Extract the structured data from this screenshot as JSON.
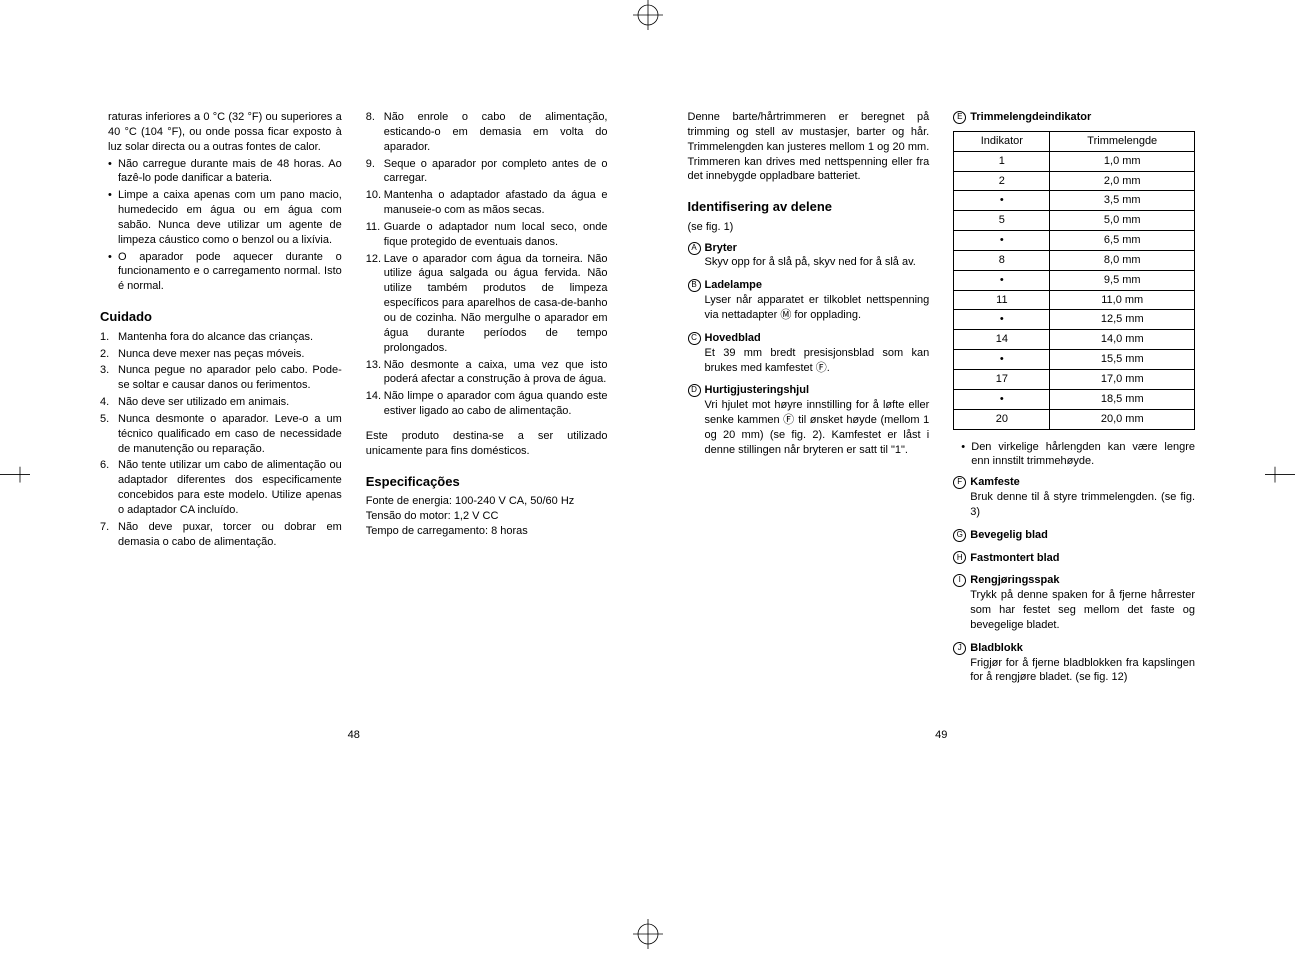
{
  "leftPage": {
    "number": "48",
    "col1": {
      "continuedBullets": [
        "raturas inferiores a 0 °C (32 °F) ou superiores a 40 °C (104 °F), ou onde possa ficar exposto à luz solar directa ou a outras fontes de calor.",
        "Não carregue durante mais de 48 horas. Ao fazê-lo pode danificar a bateria.",
        "Limpe a caixa apenas com um pano macio, humedecido em água ou em água com sabão. Nunca deve utilizar um agente de limpeza cáustico como o benzol ou a lixívia.",
        "O aparador pode aquecer durante o funcionamento e o carregamento normal. Isto é normal."
      ],
      "heading": "Cuidado",
      "numList": [
        "Mantenha fora do alcance das crianças.",
        "Nunca deve mexer nas peças móveis.",
        "Nunca pegue no aparador pelo cabo. Pode-se soltar e causar danos ou ferimentos.",
        "Não deve ser utilizado em animais.",
        "Nunca desmonte o aparador. Leve-o a um técnico qualificado em caso de necessidade de manutenção ou reparação.",
        "Não tente utilizar um cabo de alimentação ou adaptador diferentes dos especificamente concebidos para este modelo. Utilize apenas o adaptador CA incluído.",
        "Não deve puxar, torcer ou dobrar em demasia o cabo de alimentação."
      ]
    },
    "col2": {
      "numListContinued": [
        {
          "n": "8.",
          "t": "Não enrole o cabo de alimentação, esticando-o em demasia em volta do aparador."
        },
        {
          "n": "9.",
          "t": "Seque o aparador por completo antes de o carregar."
        },
        {
          "n": "10.",
          "t": "Mantenha o adaptador afastado da água e manuseie-o com as mãos secas."
        },
        {
          "n": "11.",
          "t": "Guarde o adaptador num local seco, onde fique protegido de eventuais danos."
        },
        {
          "n": "12.",
          "t": "Lave o aparador com água da torneira. Não utilize água salgada ou água fervida. Não utilize também produtos de limpeza específicos para aparelhos de casa-de-banho ou de cozinha. Não mergulhe o aparador em água durante períodos de tempo prolongados."
        },
        {
          "n": "13.",
          "t": "Não desmonte a caixa, uma vez que isto poderá afectar a construção à prova de água."
        },
        {
          "n": "14.",
          "t": "Não limpe o aparador com água quando este estiver ligado ao cabo de alimentação."
        }
      ],
      "purposeText": "Este produto destina-se a ser utilizado unicamente para fins domésticos.",
      "specHeading": "Especificações",
      "specLines": [
        "Fonte de energia: 100-240 V CA, 50/60 Hz",
        "Tensão do motor: 1,2 V CC",
        "Tempo de carregamento: 8 horas"
      ]
    }
  },
  "rightPage": {
    "number": "49",
    "col1": {
      "intro": "Denne barte/hårtrimmeren er beregnet på trimming og stell av mustasjer, barter og hår. Trimmelengden kan justeres mellom 1 og 20 mm. Trimmeren kan drives med nettspenning eller fra det innebygde oppladbare batteriet.",
      "partsHeading": "Identifisering av delene",
      "figRef": "(se fig. 1)",
      "items": [
        {
          "letter": "A",
          "term": "Bryter",
          "desc": "Skyv opp for å slå på, skyv ned for å slå av."
        },
        {
          "letter": "B",
          "term": "Ladelampe",
          "desc": "Lyser når apparatet er tilkoblet nettspenning via nettadapter Ⓜ for opplading."
        },
        {
          "letter": "C",
          "term": "Hovedblad",
          "desc": "Et 39 mm bredt presisjonsblad som kan brukes med kamfestet Ⓕ."
        },
        {
          "letter": "D",
          "term": "Hurtigjusteringshjul",
          "desc": "Vri hjulet mot høyre innstilling for å løfte eller senke kammen Ⓕ til ønsket høyde (mellom 1 og 20 mm) (se fig. 2). Kamfestet er låst i denne stillingen når bryteren er satt til \"1\"."
        }
      ]
    },
    "col2": {
      "tableLabel": {
        "letter": "E",
        "term": "Trimmelengdeindikator"
      },
      "tableHeaders": [
        "Indikator",
        "Trimmelengde"
      ],
      "tableRows": [
        [
          "1",
          "1,0 mm"
        ],
        [
          "2",
          "2,0 mm"
        ],
        [
          "•",
          "3,5 mm"
        ],
        [
          "5",
          "5,0 mm"
        ],
        [
          "•",
          "6,5 mm"
        ],
        [
          "8",
          "8,0 mm"
        ],
        [
          "•",
          "9,5 mm"
        ],
        [
          "11",
          "11,0 mm"
        ],
        [
          "•",
          "12,5 mm"
        ],
        [
          "14",
          "14,0 mm"
        ],
        [
          "•",
          "15,5 mm"
        ],
        [
          "17",
          "17,0 mm"
        ],
        [
          "•",
          "18,5 mm"
        ],
        [
          "20",
          "20,0 mm"
        ]
      ],
      "noteBullet": "Den virkelige hårlengden kan være lengre enn innstilt trimmehøyde.",
      "items": [
        {
          "letter": "F",
          "term": "Kamfeste",
          "desc": "Bruk denne til å styre trimmelengden. (se fig. 3)"
        },
        {
          "letter": "G",
          "term": "Bevegelig blad",
          "desc": ""
        },
        {
          "letter": "H",
          "term": "Fastmontert blad",
          "desc": ""
        },
        {
          "letter": "I",
          "term": "Rengjøringsspak",
          "desc": "Trykk på denne spaken for å fjerne hårrester som har festet seg mellom det faste og bevegelige bladet."
        },
        {
          "letter": "J",
          "term": "Bladblokk",
          "desc": "Frigjør for å fjerne bladblokken fra kapslingen for å rengjøre bladet. (se fig. 12)"
        }
      ]
    }
  }
}
